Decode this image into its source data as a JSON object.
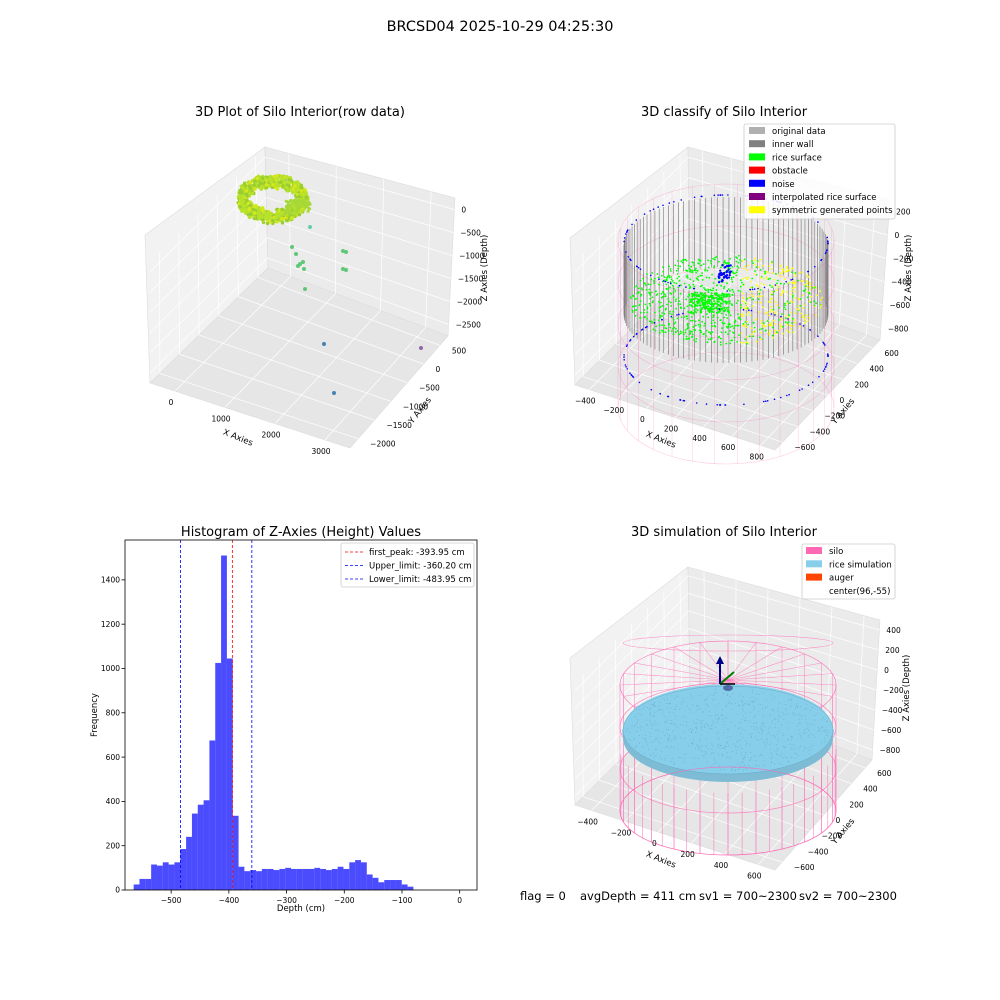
{
  "figure": {
    "title": "BRCSD04 2025-10-29 04:25:30",
    "footer": {
      "flag": "flag = 0",
      "avg": "avgDepth = 411 cm",
      "sv1": "sv1 = 700~2300",
      "sv2": "sv2 = 700~2300"
    }
  },
  "colors": {
    "raw_points": "#9acd32",
    "raw_mid": "#66cdaa",
    "raw_low": "#4682b4",
    "raw_far": "#8e6aa8",
    "original": "#b0b0b0",
    "inner_wall": "#808080",
    "rice_surface": "#00ff00",
    "obstacle": "#ff0000",
    "noise": "#0000ff",
    "interpolated": "#800080",
    "symmetric": "#ffff00",
    "silo": "#ff69b4",
    "rice_sim": "#87ceeb",
    "auger": "#ff4500",
    "hist_bar": "#0000ff",
    "peak_line": "#ff0000",
    "limit_line": "#0000ff",
    "pane": "#f2f2f2"
  },
  "chart_data": [
    {
      "type": "scatter",
      "title": "3D Plot of Silo Interior(row data)",
      "xlabel": "X Axies",
      "ylabel": "Y Axies",
      "zlabel": "Z Axies (Depth)",
      "xticks": [
        "0",
        "1000",
        "2000",
        "3000"
      ],
      "yticks": [
        "500",
        "0",
        "−500",
        "−1000",
        "−1500",
        "−2000"
      ],
      "zticks": [
        "0",
        "−500",
        "−1000",
        "−1500",
        "−2000",
        "−2500"
      ]
    },
    {
      "type": "scatter",
      "title": "3D classify of Silo Interior",
      "xlabel": "X Axies",
      "ylabel": "Y Axies",
      "zlabel": "Z Axies (Depth)",
      "xticks": [
        "−400",
        "−200",
        "0",
        "200",
        "400",
        "600",
        "800"
      ],
      "yticks": [
        "600",
        "400",
        "200",
        "0",
        "−200",
        "−400",
        "−600"
      ],
      "zticks": [
        "200",
        "0",
        "−200",
        "−400",
        "−600",
        "−800"
      ],
      "legend_position": "upper right",
      "legend": [
        "original data",
        "inner wall",
        "rice surface",
        "obstacle",
        "noise",
        "interpolated rice surface",
        "symmetric generated points"
      ]
    },
    {
      "type": "bar",
      "title": "Histogram of Z-Axies (Height) Values",
      "xlabel": "Depth (cm)",
      "ylabel": "Frequency",
      "xlim": [
        -580,
        30
      ],
      "ylim": [
        0,
        1580
      ],
      "xticks": [
        -500,
        -400,
        -300,
        -200,
        -100,
        0
      ],
      "yticks": [
        0,
        200,
        400,
        600,
        800,
        1000,
        1200,
        1400
      ],
      "bin_start": -565,
      "bin_width": 10.1,
      "values": [
        25,
        50,
        50,
        115,
        110,
        125,
        115,
        125,
        185,
        240,
        345,
        385,
        405,
        675,
        1025,
        1510,
        1045,
        335,
        105,
        85,
        90,
        85,
        95,
        95,
        90,
        95,
        100,
        95,
        95,
        95,
        95,
        100,
        95,
        90,
        95,
        105,
        95,
        125,
        135,
        125,
        70,
        55,
        35,
        45,
        45,
        45,
        25,
        15
      ],
      "vlines": [
        {
          "label": "first_peak: -393.95 cm",
          "value": -393.95,
          "role": "peak"
        },
        {
          "label": "Upper_limit: -360.20 cm",
          "value": -360.2,
          "role": "limit"
        },
        {
          "label": "Lower_limit: -483.95 cm",
          "value": -483.95,
          "role": "limit"
        }
      ],
      "legend_position": "upper right"
    },
    {
      "type": "scatter",
      "title": "3D simulation of Silo Interior",
      "xlabel": "X Axies",
      "ylabel": "Y Axies",
      "zlabel": "Z Axies (Depth)",
      "xticks": [
        "−400",
        "−200",
        "0",
        "200",
        "400",
        "600"
      ],
      "yticks": [
        "600",
        "400",
        "200",
        "0",
        "−200",
        "−400",
        "−600"
      ],
      "zticks": [
        "400",
        "200",
        "0",
        "−200",
        "−400",
        "−600",
        "−800"
      ],
      "legend_position": "upper right",
      "legend": [
        "silo",
        "rice simulation",
        "auger",
        "center(96,-55)"
      ]
    }
  ]
}
